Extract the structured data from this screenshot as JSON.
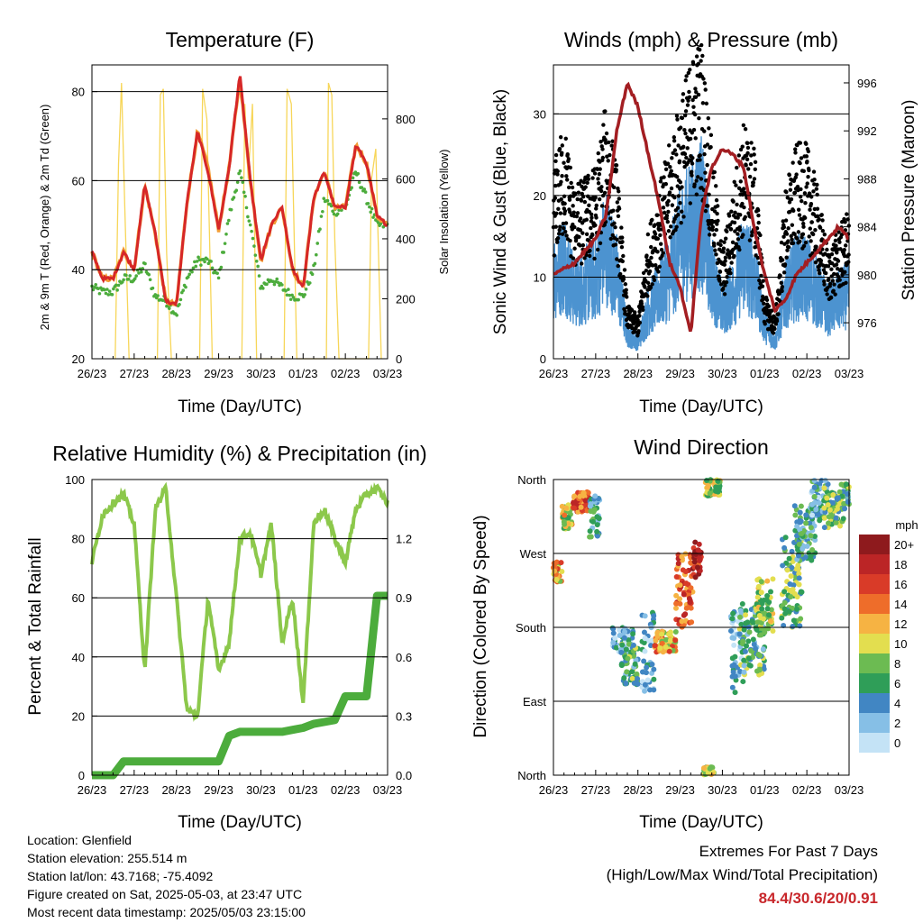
{
  "panels": {
    "temp": {
      "title": "Temperature (F)",
      "ylabel": "2m & 9m T (Red, Orange) & 2m Td (Green)",
      "y2label": "Solar Insolation (Yellow)",
      "xlabel": "Time (Day/UTC)"
    },
    "wind": {
      "title": "Winds (mph) & Pressure (mb)",
      "ylabel": "Sonic Wind & Gust (Blue, Black)",
      "y2label": "Station Pressure (Maroon)",
      "xlabel": "Time (Day/UTC)"
    },
    "rh": {
      "title": "Relative Humidity (%) & Precipitation (in)",
      "ylabel": "Percent & Total Rainfall",
      "xlabel": "Time (Day/UTC)"
    },
    "dir": {
      "title": "Wind Direction",
      "ylabel": "Direction (Colored By Speed)",
      "xlabel": "Time (Day/UTC)",
      "legend_title": "mph"
    }
  },
  "info": {
    "location": "Location: Glenfield",
    "elevation": "Station elevation: 255.514 m",
    "latlon": "Station lat/lon: 43.7168; -75.4092",
    "created": "Figure created on Sat, 2025-05-03, at 23:47 UTC",
    "recent": "Most recent data timestamp: 2025/05/03 23:15:00"
  },
  "extremes": {
    "line1": "Extremes For Past 7 Days",
    "line2": "(High/Low/Max Wind/Total Precipitation)",
    "values": "84.4/30.6/20/0.91"
  },
  "colors": {
    "t2m": "#d62728",
    "t9m": "#f39c34",
    "td": "#4cac3c",
    "solar": "#f7d659",
    "wind": "#4c93d0",
    "gust": "#000000",
    "pressure": "#a31e22",
    "rh": "#8cc84b",
    "precip": "#4cac3c"
  },
  "chart_data": [
    {
      "type": "line",
      "title": "Temperature (F)",
      "x_ticks": [
        "26/23",
        "27/23",
        "28/23",
        "29/23",
        "30/23",
        "01/23",
        "02/23",
        "03/23"
      ],
      "ylim": [
        20,
        86
      ],
      "y_ticks": [
        20,
        40,
        60,
        80
      ],
      "y2lim": [
        0,
        980
      ],
      "y2_ticks": [
        0,
        200,
        400,
        600,
        800
      ],
      "x": [
        0,
        0.25,
        0.5,
        0.75,
        1,
        1.25,
        1.5,
        1.75,
        2,
        2.25,
        2.5,
        2.75,
        3,
        3.25,
        3.5,
        3.75,
        4,
        4.25,
        4.5,
        4.75,
        5,
        5.25,
        5.5,
        5.75,
        6,
        6.25,
        6.5,
        6.75,
        7
      ],
      "series": [
        {
          "name": "2m T",
          "values": [
            44,
            38,
            38,
            44,
            40,
            59,
            48,
            33,
            32,
            55,
            71,
            62,
            49,
            63,
            84,
            60,
            42,
            50,
            54,
            40,
            36,
            56,
            62,
            54,
            54,
            68,
            64,
            52,
            50
          ]
        },
        {
          "name": "9m T",
          "values": [
            44,
            38,
            38,
            44,
            40,
            59,
            48,
            33,
            32,
            55,
            71,
            63,
            49,
            63,
            83,
            60,
            42,
            50,
            54,
            40,
            36,
            56,
            62,
            54,
            54,
            68,
            64,
            52,
            50
          ]
        },
        {
          "name": "2m Td",
          "values": [
            36,
            35,
            35,
            38,
            38,
            41,
            34,
            33,
            30,
            38,
            42,
            42,
            38,
            52,
            62,
            50,
            36,
            38,
            36,
            34,
            34,
            40,
            56,
            53,
            54,
            62,
            56,
            50,
            50
          ]
        },
        {
          "name": "Solar Insolation",
          "x": [
            0.55,
            0.63,
            0.7,
            0.78,
            0.88,
            1.55,
            1.62,
            1.69,
            1.77,
            1.88,
            2.55,
            2.62,
            2.72,
            2.85,
            3.55,
            3.62,
            3.7,
            3.8,
            3.9,
            4.55,
            4.62,
            4.72,
            4.85,
            5.55,
            5.6,
            5.68,
            5.75,
            5.85,
            6.55,
            6.62,
            6.72,
            6.85
          ],
          "values": [
            0,
            650,
            920,
            500,
            0,
            0,
            880,
            900,
            350,
            0,
            0,
            900,
            800,
            0,
            0,
            850,
            600,
            850,
            0,
            0,
            900,
            850,
            0,
            0,
            920,
            880,
            400,
            0,
            0,
            600,
            700,
            0
          ]
        }
      ]
    },
    {
      "type": "line",
      "title": "Winds (mph) & Pressure (mb)",
      "x_ticks": [
        "26/23",
        "27/23",
        "28/23",
        "29/23",
        "30/23",
        "01/23",
        "02/23",
        "03/23"
      ],
      "ylim": [
        0,
        36
      ],
      "y_ticks": [
        0,
        10,
        20,
        30
      ],
      "y2lim": [
        973,
        997.5
      ],
      "y2_ticks": [
        976,
        980,
        984,
        988,
        992,
        996
      ],
      "x": [
        0,
        0.25,
        0.5,
        0.75,
        1,
        1.25,
        1.5,
        1.75,
        2,
        2.25,
        2.5,
        2.75,
        3,
        3.25,
        3.5,
        3.75,
        4,
        4.25,
        4.5,
        4.75,
        5,
        5.25,
        5.5,
        5.75,
        6,
        6.25,
        6.5,
        6.75,
        7
      ],
      "series": [
        {
          "name": "Sonic Wind",
          "values": [
            10,
            12,
            8,
            9,
            10,
            14,
            10,
            3,
            2,
            6,
            8,
            10,
            14,
            16,
            18,
            10,
            6,
            8,
            12,
            10,
            4,
            2,
            8,
            10,
            10,
            8,
            6,
            7,
            8
          ]
        },
        {
          "name": "Gust",
          "values": [
            18,
            22,
            16,
            17,
            18,
            24,
            18,
            5,
            4,
            12,
            16,
            20,
            24,
            28,
            30,
            20,
            10,
            16,
            22,
            20,
            6,
            4,
            16,
            20,
            20,
            16,
            10,
            12,
            14
          ]
        },
        {
          "name": "Station Pressure",
          "values": [
            980,
            980.5,
            981,
            982,
            983,
            985,
            992,
            996,
            994,
            990,
            986,
            981,
            979,
            975,
            985,
            989,
            990.5,
            990,
            989,
            984,
            980,
            977,
            978,
            980,
            981,
            982,
            983,
            984,
            983
          ]
        }
      ]
    },
    {
      "type": "line",
      "title": "Relative Humidity (%) & Precipitation (in)",
      "x_ticks": [
        "26/23",
        "27/23",
        "28/23",
        "29/23",
        "30/23",
        "01/23",
        "02/23",
        "03/23"
      ],
      "ylim": [
        0,
        100
      ],
      "y_ticks": [
        0,
        20,
        40,
        60,
        80,
        100
      ],
      "y2lim": [
        0,
        1.5
      ],
      "y2_ticks": [
        0.0,
        0.3,
        0.6,
        0.9,
        1.2
      ],
      "x": [
        0,
        0.25,
        0.5,
        0.75,
        1,
        1.25,
        1.5,
        1.75,
        2,
        2.25,
        2.5,
        2.75,
        3,
        3.25,
        3.5,
        3.75,
        4,
        4.25,
        4.5,
        4.75,
        5,
        5.25,
        5.5,
        5.75,
        6,
        6.25,
        6.5,
        6.75,
        7
      ],
      "series": [
        {
          "name": "Relative Humidity",
          "values": [
            72,
            88,
            92,
            95,
            85,
            35,
            90,
            97,
            60,
            22,
            20,
            60,
            35,
            45,
            80,
            82,
            68,
            85,
            45,
            60,
            24,
            85,
            90,
            80,
            72,
            90,
            95,
            97,
            92
          ]
        },
        {
          "name": "Total Precipitation",
          "values": [
            0,
            0,
            0,
            0.07,
            0.07,
            0.07,
            0.07,
            0.07,
            0.07,
            0.07,
            0.07,
            0.07,
            0.07,
            0.2,
            0.22,
            0.22,
            0.22,
            0.22,
            0.22,
            0.23,
            0.24,
            0.26,
            0.27,
            0.28,
            0.4,
            0.4,
            0.4,
            0.91,
            0.91
          ]
        }
      ]
    },
    {
      "type": "scatter",
      "title": "Wind Direction",
      "x_ticks": [
        "26/23",
        "27/23",
        "28/23",
        "29/23",
        "30/23",
        "01/23",
        "02/23",
        "03/23"
      ],
      "y_ticks": [
        "North",
        "East",
        "South",
        "West",
        "North"
      ],
      "ylim": [
        0,
        360
      ],
      "legend": {
        "title": "mph",
        "levels": [
          "0",
          "2",
          "4",
          "6",
          "8",
          "10",
          "12",
          "14",
          "16",
          "18",
          "20+"
        ],
        "colors": [
          "#c4e3f6",
          "#86bfe6",
          "#4186c3",
          "#2f9e58",
          "#6cbb52",
          "#e3de4f",
          "#f6b343",
          "#ee6d2a",
          "#d93b28",
          "#bb2526",
          "#8e1a1d"
        ]
      },
      "clusters": [
        {
          "x0": 0.0,
          "x1": 0.2,
          "d0": 235,
          "d1": 260,
          "speed": 12
        },
        {
          "x0": 0.2,
          "x1": 0.45,
          "d0": 300,
          "d1": 330,
          "speed": 10
        },
        {
          "x0": 0.45,
          "x1": 0.85,
          "d0": 320,
          "d1": 345,
          "speed": 15
        },
        {
          "x0": 0.85,
          "x1": 1.1,
          "d0": 290,
          "d1": 340,
          "speed": 5
        },
        {
          "x0": 1.4,
          "x1": 1.9,
          "d0": 150,
          "d1": 180,
          "speed": 3
        },
        {
          "x0": 1.6,
          "x1": 2.0,
          "d0": 110,
          "d1": 160,
          "speed": 6
        },
        {
          "x0": 2.1,
          "x1": 2.4,
          "d0": 100,
          "d1": 200,
          "speed": 3
        },
        {
          "x0": 2.4,
          "x1": 2.9,
          "d0": 150,
          "d1": 175,
          "speed": 12
        },
        {
          "x0": 2.9,
          "x1": 3.3,
          "d0": 180,
          "d1": 270,
          "speed": 15
        },
        {
          "x0": 3.3,
          "x1": 3.5,
          "d0": 240,
          "d1": 285,
          "speed": 18
        },
        {
          "x0": 3.6,
          "x1": 3.95,
          "d0": 340,
          "d1": 360,
          "speed": 9
        },
        {
          "x0": 4.2,
          "x1": 4.5,
          "d0": 100,
          "d1": 200,
          "speed": 3
        },
        {
          "x0": 4.4,
          "x1": 5.0,
          "d0": 120,
          "d1": 210,
          "speed": 6
        },
        {
          "x0": 4.8,
          "x1": 5.2,
          "d0": 170,
          "d1": 240,
          "speed": 9
        },
        {
          "x0": 5.4,
          "x1": 5.9,
          "d0": 180,
          "d1": 290,
          "speed": 7
        },
        {
          "x0": 5.7,
          "x1": 6.2,
          "d0": 260,
          "d1": 330,
          "speed": 5
        },
        {
          "x0": 6.1,
          "x1": 6.5,
          "d0": 310,
          "d1": 360,
          "speed": 4
        },
        {
          "x0": 6.4,
          "x1": 6.9,
          "d0": 300,
          "d1": 355,
          "speed": 7
        },
        {
          "x0": 6.9,
          "x1": 7.0,
          "d0": 330,
          "d1": 355,
          "speed": 6
        },
        {
          "x0": 3.55,
          "x1": 3.8,
          "d0": 0,
          "d1": 10,
          "speed": 9
        }
      ]
    }
  ]
}
